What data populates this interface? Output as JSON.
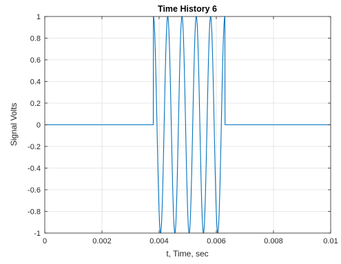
{
  "chart_data": {
    "type": "line",
    "title": "Time History 6",
    "xlabel": "t, Time, sec",
    "ylabel": "Signal Volts",
    "xlim": [
      0,
      0.01
    ],
    "ylim": [
      -1,
      1
    ],
    "grid": true,
    "xticks": [
      0,
      0.002,
      0.004,
      0.006,
      0.008,
      0.01
    ],
    "xtick_labels": [
      "0",
      "0.002",
      "0.004",
      "0.006",
      "0.008",
      "0.01"
    ],
    "yticks": [
      -1,
      -0.8,
      -0.6,
      -0.4,
      -0.2,
      0,
      0.2,
      0.4,
      0.6,
      0.8,
      1
    ],
    "ytick_labels": [
      "-1",
      "-0.8",
      "-0.6",
      "-0.4",
      "-0.2",
      "0",
      "0.2",
      "0.4",
      "0.6",
      "0.8",
      "1"
    ],
    "series": [
      {
        "description": "zero-amplitude, then a 2000 Hz cosine burst of 5 cycles starting at t = 0.0038 s, then zero",
        "burst_start": 0.0038,
        "burst_end": 0.0063,
        "frequency_hz": 2000,
        "amplitude": 1,
        "color": "#0072BD"
      }
    ]
  }
}
